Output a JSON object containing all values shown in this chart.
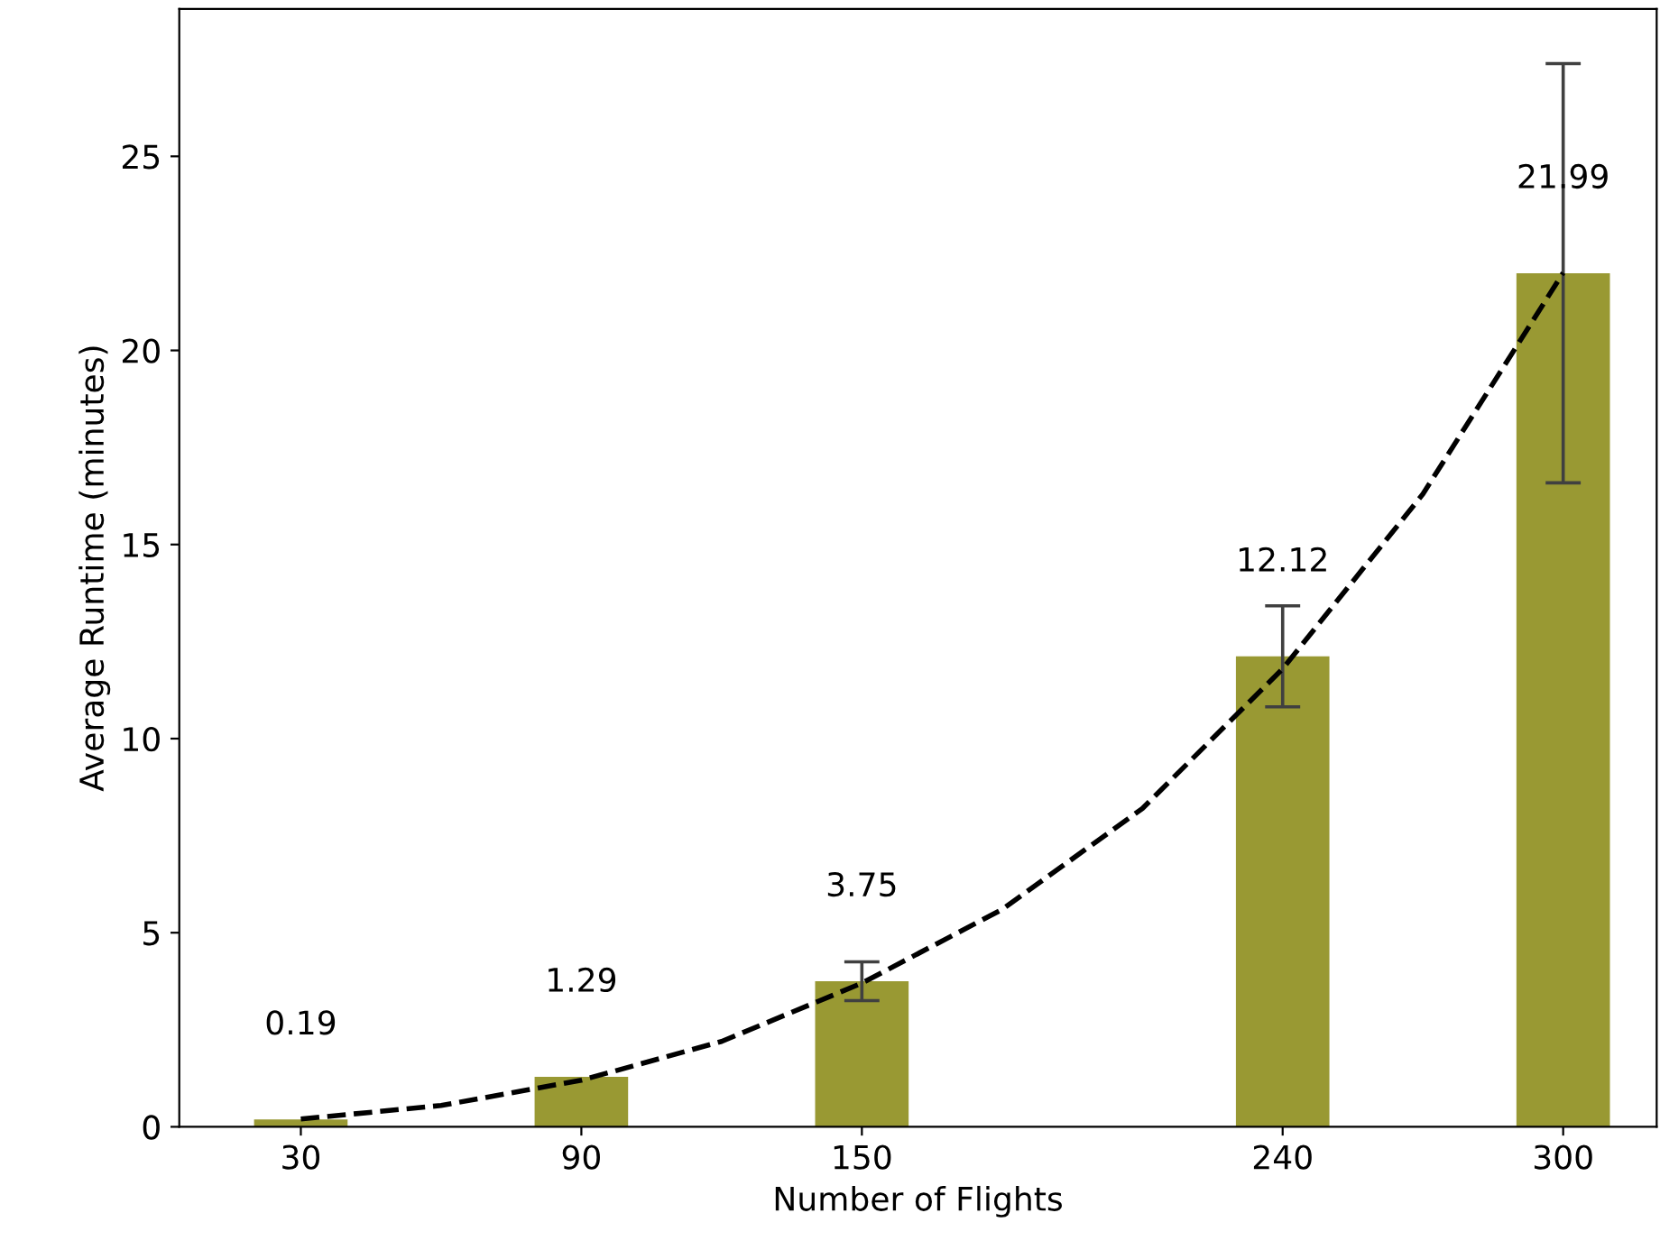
{
  "chart_data": {
    "type": "bar",
    "xlabel": "Number of Flights",
    "ylabel": "Average Runtime (minutes)",
    "x": [
      30,
      90,
      150,
      240,
      300
    ],
    "series": [
      {
        "color": "#999933",
        "values": [
          0.19,
          1.29,
          3.75,
          12.12,
          21.99
        ],
        "errors": [
          null,
          null,
          0.5,
          1.3,
          5.4
        ],
        "value_labels": [
          "0.19",
          "1.29",
          "3.75",
          "12.12",
          "21.99"
        ]
      },
      {
        "type": "line",
        "color": "#000000",
        "line_style": "dashed",
        "marker": "none",
        "x": [
          30,
          60,
          90,
          120,
          150,
          180,
          210,
          240,
          270,
          300
        ],
        "values": [
          0.2,
          0.55,
          1.2,
          2.2,
          3.7,
          5.6,
          8.2,
          11.8,
          16.3,
          22
        ]
      }
    ],
    "xlim": [
      4,
      320
    ],
    "ylim": [
      0,
      28.8
    ],
    "xticks": [
      30,
      90,
      150,
      240,
      300
    ],
    "yticks": [
      0,
      5,
      10,
      15,
      20,
      25
    ],
    "grid": false,
    "legend": false
  }
}
